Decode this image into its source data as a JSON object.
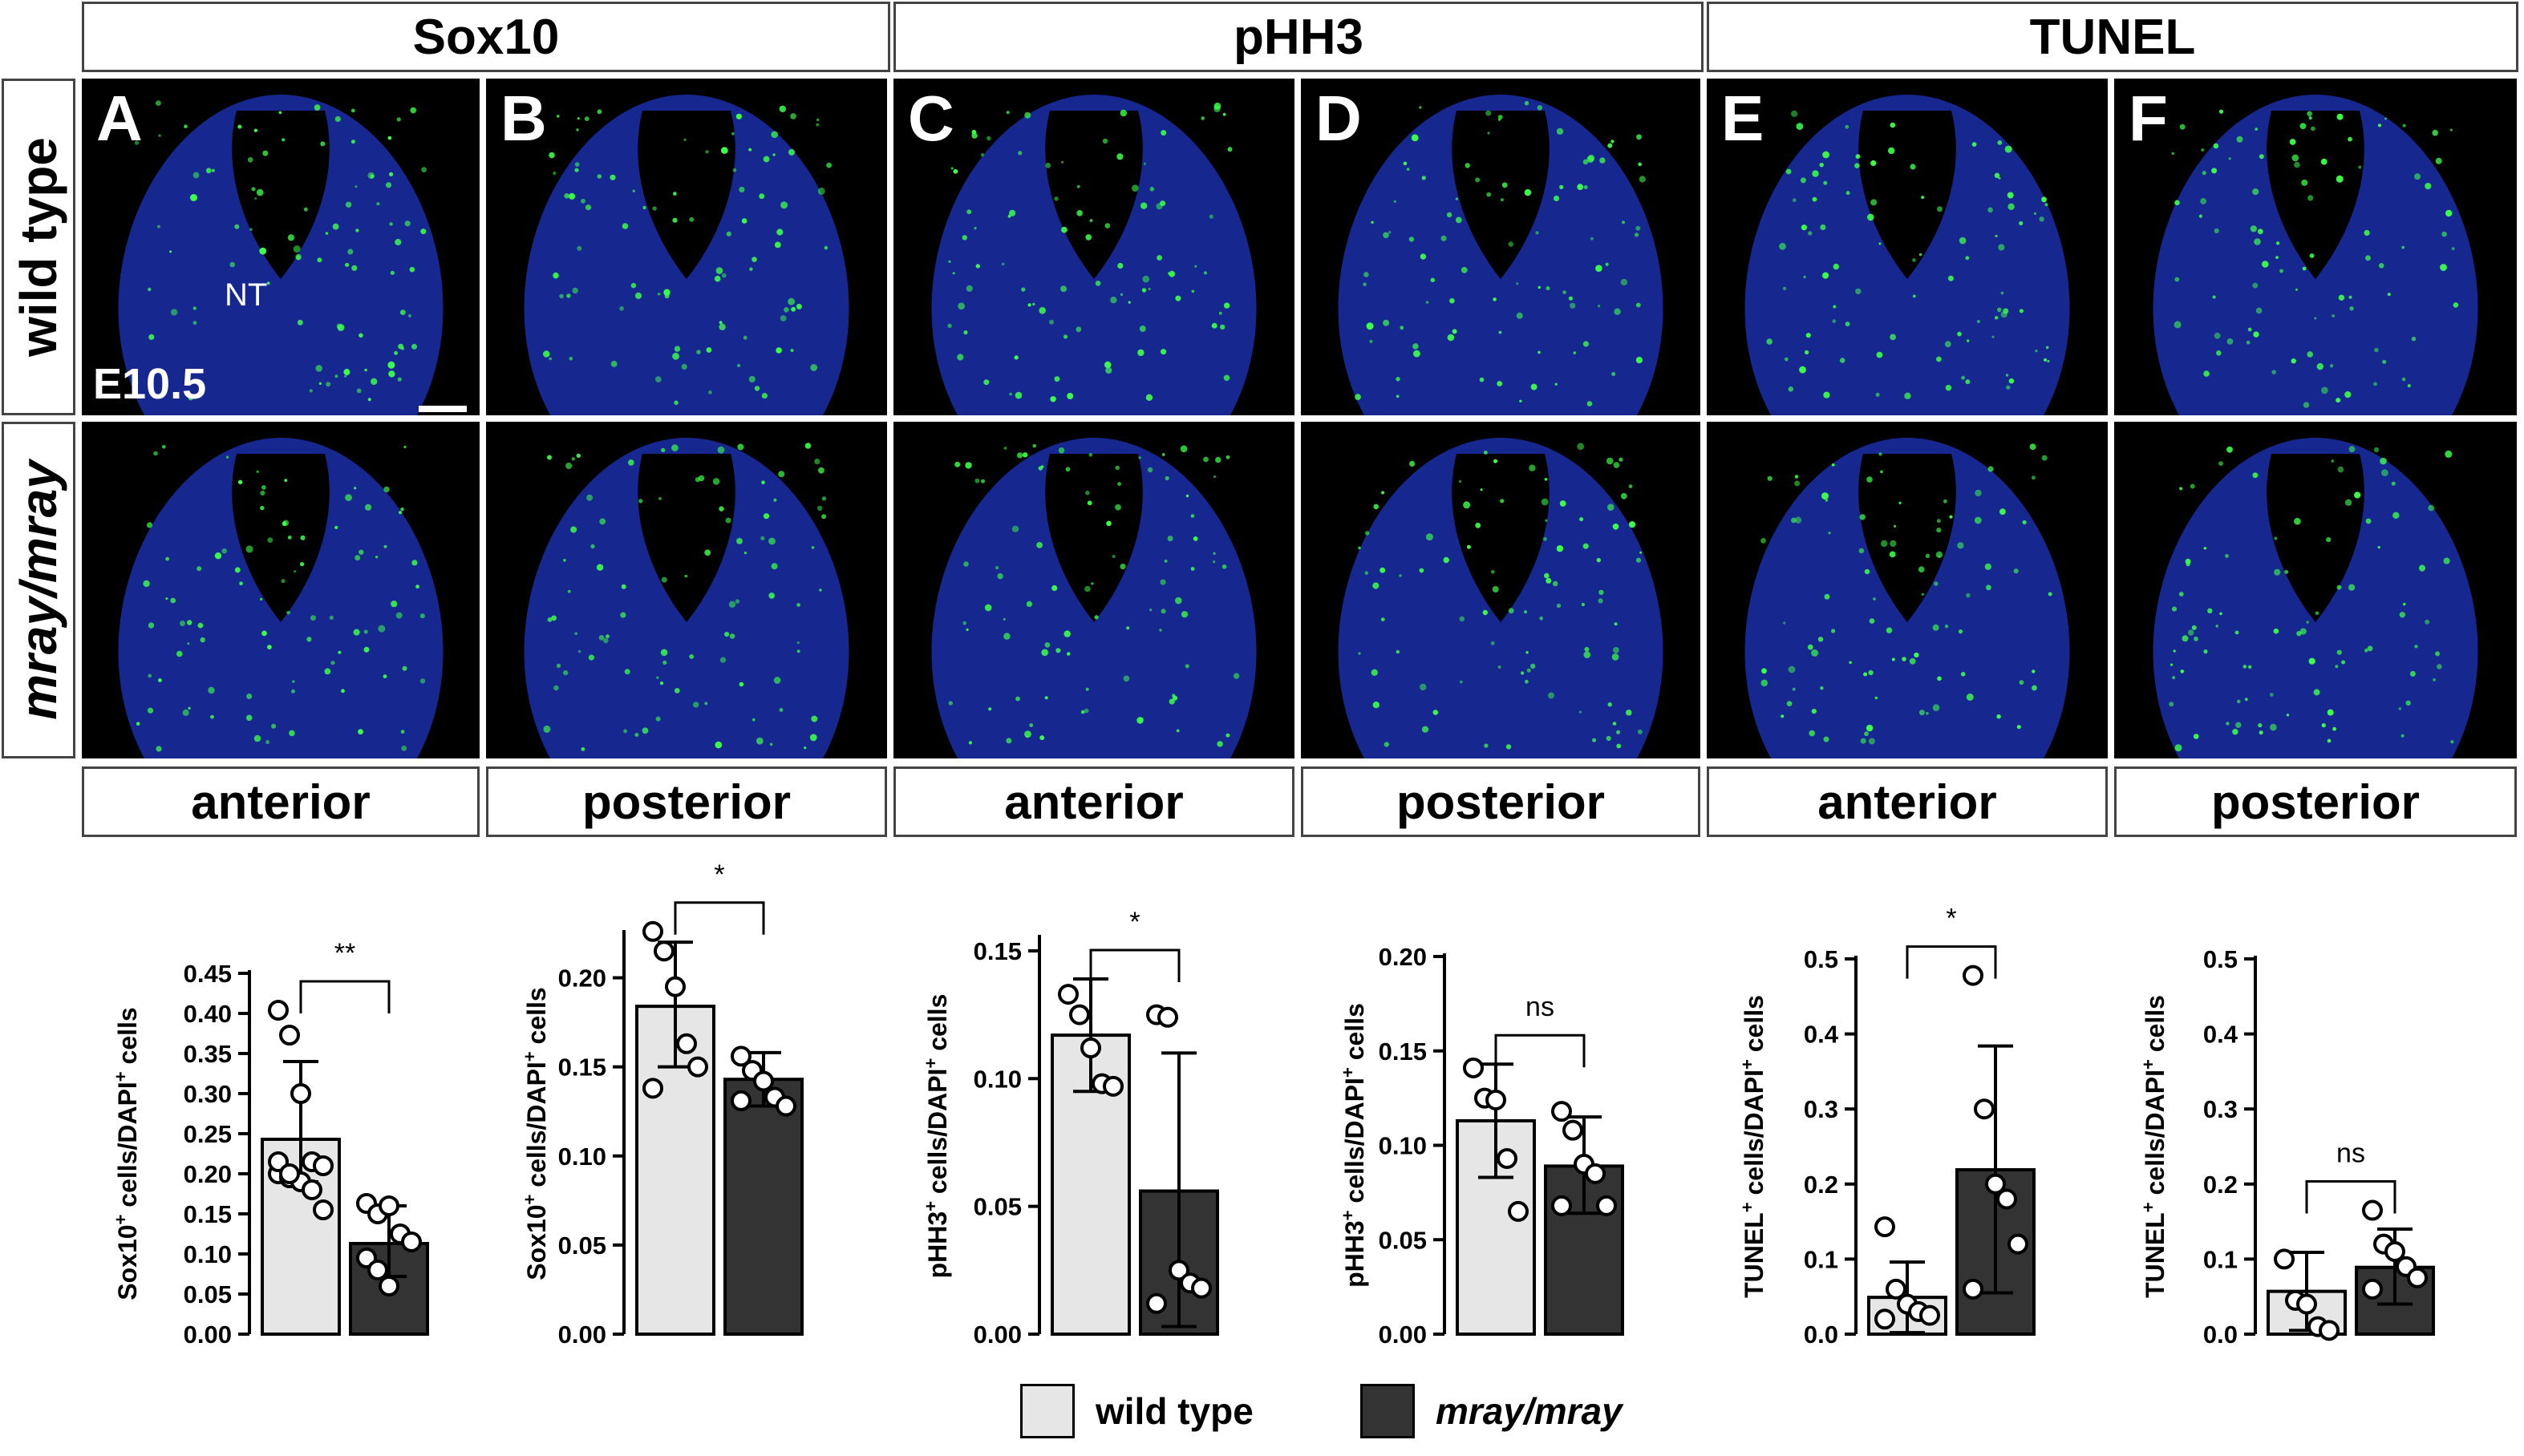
{
  "headers": {
    "sox10": "Sox10",
    "phh3": "pHH3",
    "tunel": "TUNEL"
  },
  "row_labels": {
    "top": "wild type",
    "bottom": "mray/mray"
  },
  "panel_letters": [
    "A",
    "B",
    "C",
    "D",
    "E",
    "F"
  ],
  "panel_annotations": {
    "nt": "NT",
    "stage": "E10.5"
  },
  "column_labels": [
    "anterior",
    "posterior",
    "anterior",
    "posterior",
    "anterior",
    "posterior"
  ],
  "legend": {
    "wt_label": "wild type",
    "mut_label": "mray/mray",
    "colors": {
      "wild_type": "#e6e6e6",
      "mutant": "#333333"
    }
  },
  "chart_data": [
    {
      "type": "bar",
      "ylabel_pre": "Sox10",
      "ylabel_post": " cells/DAPI",
      "ylabel_end": " cells",
      "sup1": "+",
      "sup2": "+",
      "ylim": [
        0,
        0.45
      ],
      "ticks": [
        0.0,
        0.05,
        0.1,
        0.15,
        0.2,
        0.25,
        0.3,
        0.35,
        0.4,
        0.45
      ],
      "ticklabels": [
        "0.00",
        "0.05",
        "0.10",
        "0.15",
        "0.20",
        "0.25",
        "0.30",
        "0.35",
        "0.40",
        "0.45"
      ],
      "significance": "**",
      "series": [
        {
          "mean": 0.243,
          "sd_top": 0.34,
          "sd_bot": 0.19,
          "points": [
            0.404,
            0.373,
            0.3,
            0.215,
            0.21,
            0.2,
            0.195,
            0.19,
            0.18,
            0.155,
            0.215,
            0.2
          ]
        },
        {
          "mean": 0.113,
          "sd_top": 0.16,
          "sd_bot": 0.072,
          "points": [
            0.163,
            0.15,
            0.16,
            0.125,
            0.115,
            0.095,
            0.08,
            0.06
          ]
        }
      ]
    },
    {
      "type": "bar",
      "ylabel_pre": "Sox10",
      "ylabel_post": " cells/DAPI",
      "ylabel_end": " cells",
      "sup1": "+",
      "sup2": "+",
      "ylim": [
        0,
        0.225
      ],
      "ticks": [
        0.0,
        0.05,
        0.1,
        0.15,
        0.2
      ],
      "ticklabels": [
        "0.00",
        "0.05",
        "0.10",
        "0.15",
        "0.20"
      ],
      "significance": "*",
      "series": [
        {
          "mean": 0.184,
          "sd_top": 0.22,
          "sd_bot": 0.15,
          "points": [
            0.226,
            0.215,
            0.195,
            0.163,
            0.15,
            0.138
          ]
        },
        {
          "mean": 0.143,
          "sd_top": 0.158,
          "sd_bot": 0.128,
          "points": [
            0.156,
            0.148,
            0.142,
            0.133,
            0.128,
            0.131
          ]
        }
      ]
    },
    {
      "type": "bar",
      "ylabel_pre": "pHH3",
      "ylabel_post": " cells/DAPI",
      "ylabel_end": " cells",
      "sup1": "+",
      "sup2": "+",
      "ylim": [
        0,
        0.155
      ],
      "ticks": [
        0.0,
        0.05,
        0.1,
        0.15
      ],
      "ticklabels": [
        "0.00",
        "0.05",
        "0.10",
        "0.15"
      ],
      "significance": "*",
      "series": [
        {
          "mean": 0.117,
          "sd_top": 0.139,
          "sd_bot": 0.095,
          "points": [
            0.133,
            0.125,
            0.112,
            0.098,
            0.097
          ]
        },
        {
          "mean": 0.056,
          "sd_top": 0.11,
          "sd_bot": 0.003,
          "points": [
            0.125,
            0.124,
            0.025,
            0.02,
            0.018,
            0.012
          ]
        }
      ]
    },
    {
      "type": "bar",
      "ylabel_pre": "pHH3",
      "ylabel_post": " cells/DAPI",
      "ylabel_end": " cells",
      "sup1": "+",
      "sup2": "+",
      "ylim": [
        0,
        0.2
      ],
      "ticks": [
        0.0,
        0.05,
        0.1,
        0.15,
        0.2
      ],
      "ticklabels": [
        "0.00",
        "0.05",
        "0.10",
        "0.15",
        "0.20"
      ],
      "significance": "ns",
      "series": [
        {
          "mean": 0.113,
          "sd_top": 0.143,
          "sd_bot": 0.083,
          "points": [
            0.141,
            0.125,
            0.124,
            0.093,
            0.065
          ]
        },
        {
          "mean": 0.089,
          "sd_top": 0.115,
          "sd_bot": 0.064,
          "points": [
            0.118,
            0.108,
            0.09,
            0.085,
            0.068,
            0.068
          ]
        }
      ]
    },
    {
      "type": "bar",
      "ylabel_pre": "TUNEL",
      "ylabel_post": " cells/DAPI",
      "ylabel_end": " cells",
      "sup1": "+",
      "sup2": "+",
      "ylim": [
        0,
        0.5
      ],
      "ticks": [
        0.0,
        0.1,
        0.2,
        0.3,
        0.4,
        0.5
      ],
      "ticklabels": [
        "0.0",
        "0.1",
        "0.2",
        "0.3",
        "0.4",
        "0.5"
      ],
      "significance": "*",
      "series": [
        {
          "mean": 0.049,
          "sd_top": 0.096,
          "sd_bot": 0.002,
          "points": [
            0.143,
            0.06,
            0.04,
            0.03,
            0.025,
            0.02
          ]
        },
        {
          "mean": 0.219,
          "sd_top": 0.384,
          "sd_bot": 0.055,
          "points": [
            0.478,
            0.3,
            0.2,
            0.18,
            0.12,
            0.06
          ]
        }
      ]
    },
    {
      "type": "bar",
      "ylabel_pre": "TUNEL",
      "ylabel_post": " cells/DAPI",
      "ylabel_end": " cells",
      "sup1": "+",
      "sup2": "+",
      "ylim": [
        0,
        0.5
      ],
      "ticks": [
        0.0,
        0.1,
        0.2,
        0.3,
        0.4,
        0.5
      ],
      "ticklabels": [
        "0.0",
        "0.1",
        "0.2",
        "0.3",
        "0.4",
        "0.5"
      ],
      "significance": "ns",
      "series": [
        {
          "mean": 0.057,
          "sd_top": 0.109,
          "sd_bot": 0.005,
          "points": [
            0.1,
            0.045,
            0.04,
            0.01,
            0.005
          ]
        },
        {
          "mean": 0.089,
          "sd_top": 0.14,
          "sd_bot": 0.04,
          "points": [
            0.165,
            0.12,
            0.11,
            0.09,
            0.075,
            0.06
          ]
        }
      ]
    }
  ]
}
